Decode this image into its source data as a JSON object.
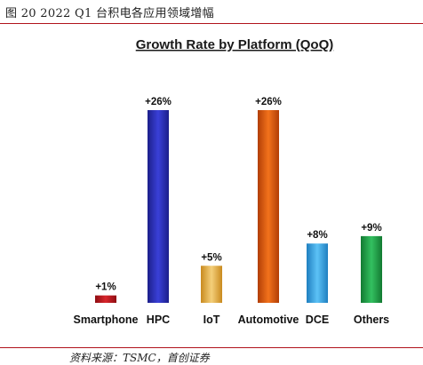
{
  "figure": {
    "caption": "图 20 2022 Q1 台积电各应用领域增幅",
    "source": "资料来源：TSMC，首创证券"
  },
  "chart_data": {
    "type": "bar",
    "title": "Growth Rate by Platform (QoQ)",
    "xlabel": "",
    "ylabel": "",
    "categories": [
      "Smartphone",
      "HPC",
      "IoT",
      "Automotive",
      "DCE",
      "Others"
    ],
    "values": [
      1,
      26,
      5,
      26,
      8,
      9
    ],
    "value_labels": [
      "+1%",
      "+26%",
      "+5%",
      "+26%",
      "+8%",
      "+9%"
    ],
    "unit": "%",
    "ylim": [
      0,
      26
    ],
    "grid": false,
    "legend": "none",
    "colors": [
      "#c8181e",
      "#2a2fbf",
      "#e8b24a",
      "#e05a10",
      "#3aa6e8",
      "#22a84a"
    ]
  }
}
